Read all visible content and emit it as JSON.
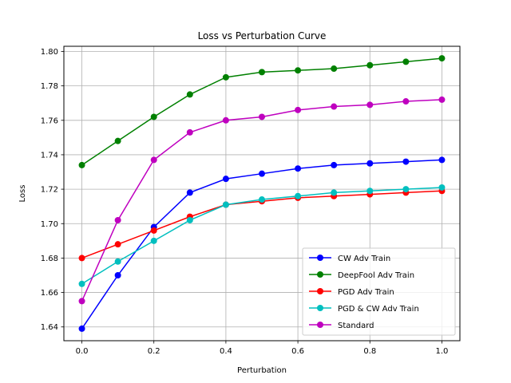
{
  "chart_data": {
    "type": "line",
    "title": "Loss vs Perturbation Curve",
    "xlabel": "Perturbation",
    "ylabel": "Loss",
    "xlim": [
      -0.05,
      1.05
    ],
    "ylim": [
      1.632,
      1.803
    ],
    "xticks": [
      0.0,
      0.2,
      0.4,
      0.6,
      0.8,
      1.0
    ],
    "xtick_labels": [
      "0.0",
      "0.2",
      "0.4",
      "0.6",
      "0.8",
      "1.0"
    ],
    "yticks": [
      1.64,
      1.66,
      1.68,
      1.7,
      1.72,
      1.74,
      1.76,
      1.78,
      1.8
    ],
    "ytick_labels": [
      "1.64",
      "1.66",
      "1.68",
      "1.70",
      "1.72",
      "1.74",
      "1.76",
      "1.78",
      "1.80"
    ],
    "grid": true,
    "legend_position": "bottom-right",
    "x": [
      0.0,
      0.1,
      0.2,
      0.3,
      0.4,
      0.5,
      0.6,
      0.7,
      0.8,
      0.9,
      1.0
    ],
    "series": [
      {
        "name": "CW Adv Train",
        "color": "#0000ff",
        "values": [
          1.639,
          1.67,
          1.698,
          1.718,
          1.726,
          1.729,
          1.732,
          1.734,
          1.735,
          1.736,
          1.737
        ]
      },
      {
        "name": "DeepFool Adv Train",
        "color": "#008000",
        "values": [
          1.734,
          1.748,
          1.762,
          1.775,
          1.785,
          1.788,
          1.789,
          1.79,
          1.792,
          1.794,
          1.796
        ]
      },
      {
        "name": "PGD Adv Train",
        "color": "#ff0000",
        "values": [
          1.68,
          1.688,
          1.696,
          1.704,
          1.711,
          1.713,
          1.715,
          1.716,
          1.717,
          1.718,
          1.719
        ]
      },
      {
        "name": "PGD & CW Adv Train",
        "color": "#00bfbf",
        "values": [
          1.665,
          1.678,
          1.69,
          1.702,
          1.711,
          1.714,
          1.716,
          1.718,
          1.719,
          1.72,
          1.721
        ]
      },
      {
        "name": "Standard",
        "color": "#bf00bf",
        "values": [
          1.655,
          1.702,
          1.737,
          1.753,
          1.76,
          1.762,
          1.766,
          1.768,
          1.769,
          1.771,
          1.772
        ]
      }
    ]
  }
}
